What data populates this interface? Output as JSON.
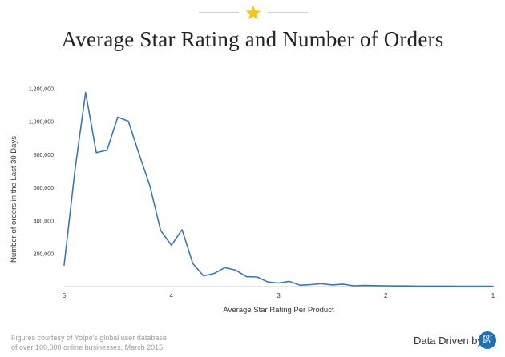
{
  "header": {
    "title": "Average Star Rating and Number of Orders",
    "star_color": "#f5c518"
  },
  "chart_data": {
    "type": "line",
    "title": "Average Star Rating and Number of Orders",
    "xlabel": "Average Star Rating Per Product",
    "ylabel": "Number of orders in the Last 30 Days",
    "xlim": [
      5,
      1
    ],
    "ylim": [
      0,
      1250000
    ],
    "x_ticks": [
      {
        "value": 5,
        "label": "5"
      },
      {
        "value": 4,
        "label": "4"
      },
      {
        "value": 3,
        "label": "3"
      },
      {
        "value": 2,
        "label": "2"
      },
      {
        "value": 1,
        "label": "1"
      }
    ],
    "y_ticks": [
      {
        "value": 200000,
        "label": "200,000"
      },
      {
        "value": 400000,
        "label": "400,000"
      },
      {
        "value": 600000,
        "label": "600,000"
      },
      {
        "value": 800000,
        "label": "800,000"
      },
      {
        "value": 1000000,
        "label": "1,000,000"
      },
      {
        "value": 1200000,
        "label": "1,200,000"
      }
    ],
    "line_color": "#3b78b2",
    "grid": false,
    "series": [
      {
        "name": "",
        "x": [
          5.0,
          4.9,
          4.8,
          4.7,
          4.6,
          4.5,
          4.4,
          4.3,
          4.2,
          4.1,
          4.0,
          3.9,
          3.8,
          3.7,
          3.6,
          3.5,
          3.4,
          3.3,
          3.2,
          3.1,
          3.0,
          2.9,
          2.8,
          2.7,
          2.6,
          2.5,
          2.4,
          2.3,
          2.2,
          2.1,
          2.0,
          1.9,
          1.8,
          1.7,
          1.6,
          1.5,
          1.4,
          1.3,
          1.2,
          1.1,
          1.0
        ],
        "y": [
          130000,
          700000,
          1175000,
          810000,
          825000,
          1025000,
          1000000,
          800000,
          610000,
          340000,
          250000,
          345000,
          140000,
          65000,
          80000,
          115000,
          100000,
          60000,
          58000,
          28000,
          22000,
          32000,
          8000,
          12000,
          18000,
          10000,
          15000,
          5000,
          7000,
          6000,
          5000,
          4000,
          4000,
          3000,
          3000,
          3000,
          3000,
          2000,
          2000,
          2000,
          2000
        ]
      }
    ]
  },
  "footer": {
    "note_line1": "Figures courtesy of Yotpo's global user database",
    "note_line2": "of over 100,000 online businesses, March 2015.",
    "brand_text": "Data Driven by",
    "brand_logo_text": "YOT PO."
  }
}
